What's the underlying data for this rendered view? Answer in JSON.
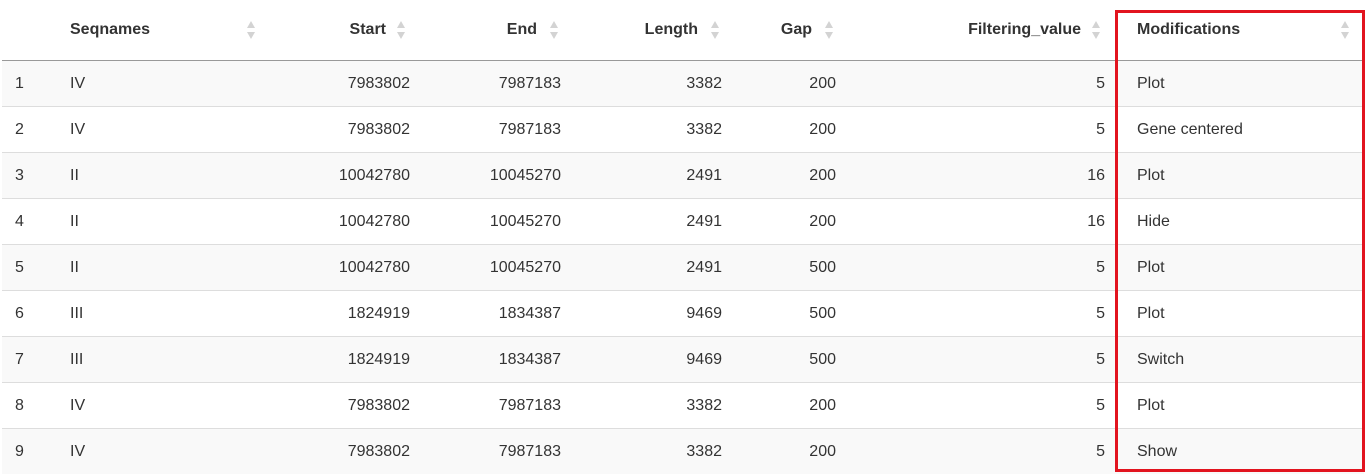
{
  "table": {
    "columns": [
      "",
      "Seqnames",
      "Start",
      "End",
      "Length",
      "Gap",
      "Filtering_value",
      "Modifications"
    ],
    "rows": [
      {
        "idx": "1",
        "seqnames": "IV",
        "start": "7983802",
        "end": "7987183",
        "length": "3382",
        "gap": "200",
        "filtering_value": "5",
        "modifications": "Plot"
      },
      {
        "idx": "2",
        "seqnames": "IV",
        "start": "7983802",
        "end": "7987183",
        "length": "3382",
        "gap": "200",
        "filtering_value": "5",
        "modifications": "Gene centered"
      },
      {
        "idx": "3",
        "seqnames": "II",
        "start": "10042780",
        "end": "10045270",
        "length": "2491",
        "gap": "200",
        "filtering_value": "16",
        "modifications": "Plot"
      },
      {
        "idx": "4",
        "seqnames": "II",
        "start": "10042780",
        "end": "10045270",
        "length": "2491",
        "gap": "200",
        "filtering_value": "16",
        "modifications": "Hide"
      },
      {
        "idx": "5",
        "seqnames": "II",
        "start": "10042780",
        "end": "10045270",
        "length": "2491",
        "gap": "500",
        "filtering_value": "5",
        "modifications": "Plot"
      },
      {
        "idx": "6",
        "seqnames": "III",
        "start": "1824919",
        "end": "1834387",
        "length": "9469",
        "gap": "500",
        "filtering_value": "5",
        "modifications": "Plot"
      },
      {
        "idx": "7",
        "seqnames": "III",
        "start": "1824919",
        "end": "1834387",
        "length": "9469",
        "gap": "500",
        "filtering_value": "5",
        "modifications": "Switch"
      },
      {
        "idx": "8",
        "seqnames": "IV",
        "start": "7983802",
        "end": "7987183",
        "length": "3382",
        "gap": "200",
        "filtering_value": "5",
        "modifications": "Plot"
      },
      {
        "idx": "9",
        "seqnames": "IV",
        "start": "7983802",
        "end": "7987183",
        "length": "3382",
        "gap": "200",
        "filtering_value": "5",
        "modifications": "Show"
      }
    ]
  },
  "colors": {
    "highlight_border": "#e2141f",
    "row_odd": "#f9f9f9",
    "row_even": "#ffffff",
    "sort_icon": "#d3d3d3"
  },
  "icons": {
    "sort": "sort-both-icon"
  }
}
